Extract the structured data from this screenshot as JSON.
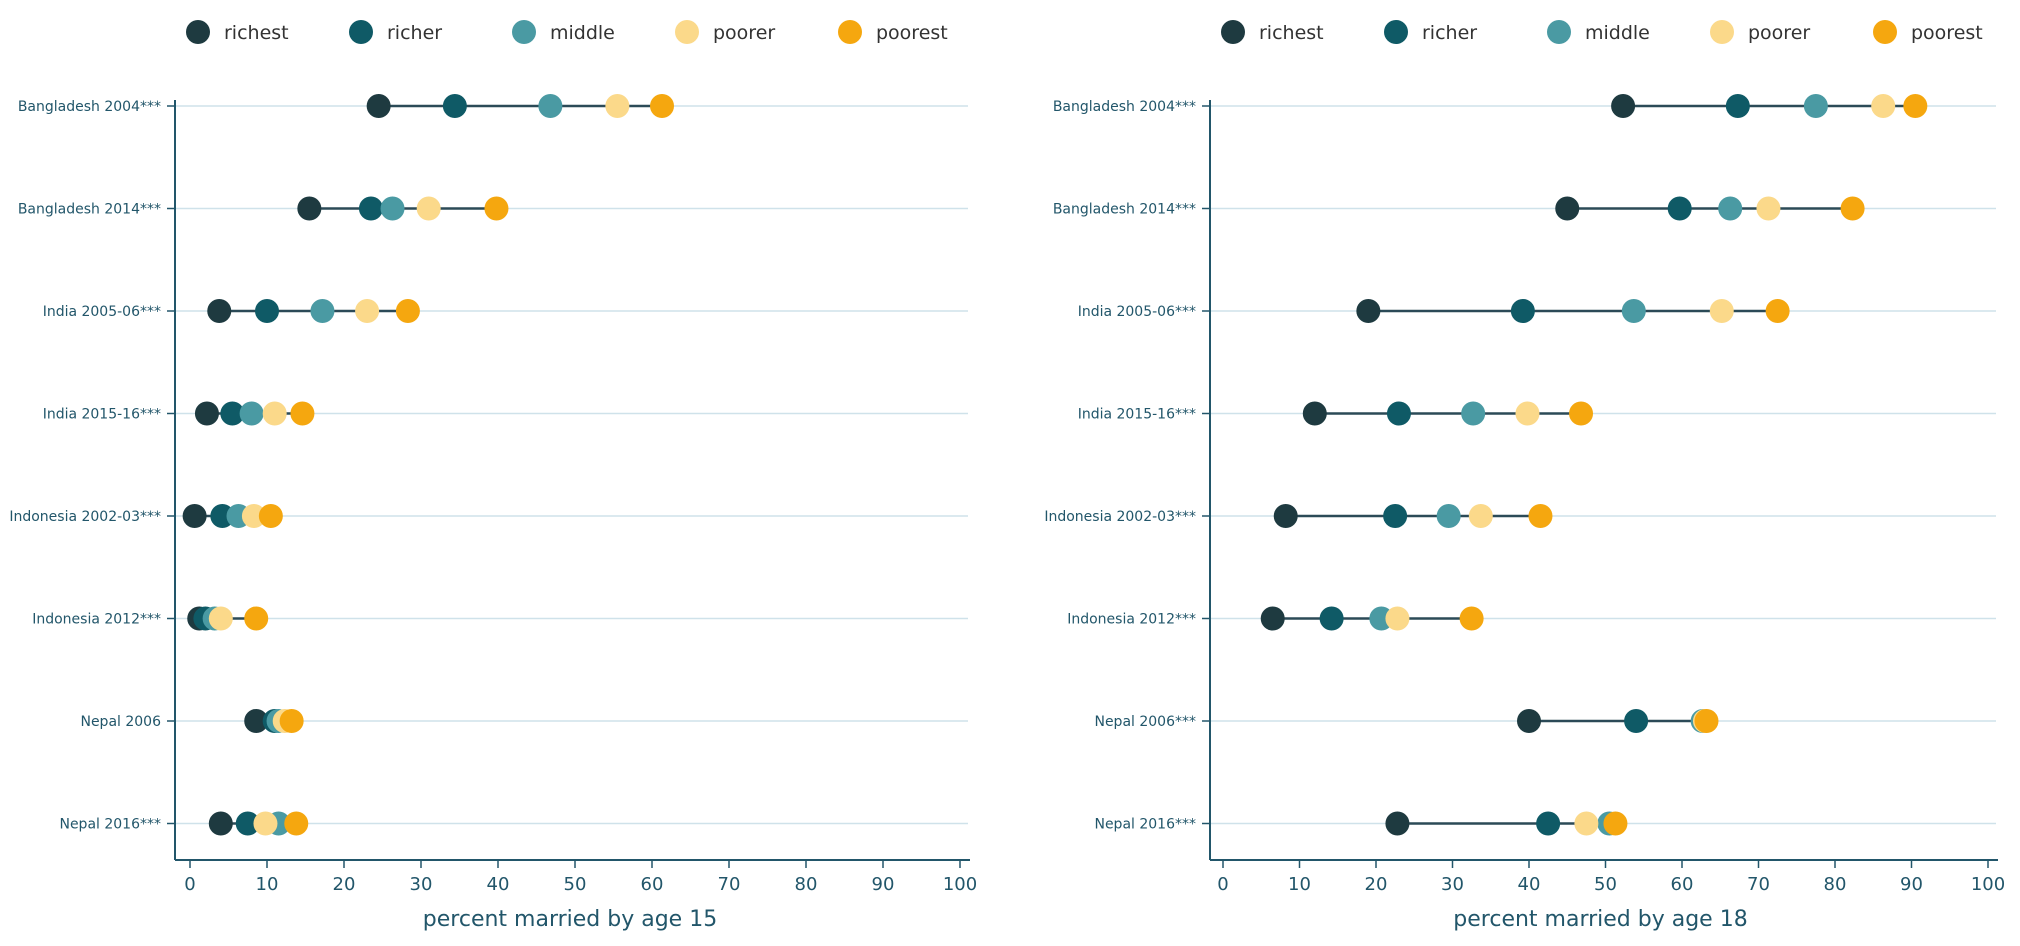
{
  "chart_data": [
    {
      "type": "scatter",
      "xlabel": "percent married by age 15",
      "xlim": [
        0,
        100
      ],
      "xticks": [
        "0",
        "10",
        "20",
        "30",
        "40",
        "50",
        "60",
        "70",
        "80",
        "90",
        "100"
      ],
      "legend_position": "top",
      "grid": "horizontal",
      "categories": [
        "Bangladesh 2004***",
        "Bangladesh 2014***",
        "India 2005-06***",
        "India 2015-16***",
        "Indonesia 2002-03***",
        "Indonesia 2012***",
        "Nepal 2006",
        "Nepal 2016***"
      ],
      "series": [
        {
          "name": "richest",
          "color": "#1e3a40",
          "values": [
            24.5,
            15.5,
            3.8,
            2.2,
            0.6,
            1.2,
            8.6,
            4.0
          ]
        },
        {
          "name": "richer",
          "color": "#0f5a66",
          "values": [
            34.4,
            23.5,
            10.0,
            5.5,
            4.2,
            2.0,
            11.0,
            7.5
          ]
        },
        {
          "name": "middle",
          "color": "#4a9aa3",
          "values": [
            46.8,
            26.3,
            17.2,
            8.0,
            6.3,
            3.2,
            11.5,
            11.5
          ]
        },
        {
          "name": "poorer",
          "color": "#fbd98a",
          "values": [
            55.5,
            31.0,
            23.0,
            11.0,
            8.3,
            4.0,
            12.3,
            9.8
          ]
        },
        {
          "name": "poorest",
          "color": "#f5a70f",
          "values": [
            61.3,
            39.8,
            28.3,
            14.6,
            10.5,
            8.6,
            13.2,
            13.8
          ]
        }
      ]
    },
    {
      "type": "scatter",
      "xlabel": "percent married by age 18",
      "xlim": [
        0,
        100
      ],
      "xticks": [
        "0",
        "10",
        "20",
        "30",
        "40",
        "50",
        "60",
        "70",
        "80",
        "90",
        "100"
      ],
      "legend_position": "top",
      "grid": "horizontal",
      "categories": [
        "Bangladesh 2004***",
        "Bangladesh 2014***",
        "India 2005-06***",
        "India 2015-16***",
        "Indonesia 2002-03***",
        "Indonesia 2012***",
        "Nepal 2006***",
        "Nepal 2016***"
      ],
      "series": [
        {
          "name": "richest",
          "color": "#1e3a40",
          "values": [
            52.3,
            45.0,
            19.0,
            12.0,
            8.2,
            6.5,
            40.0,
            22.8
          ]
        },
        {
          "name": "richer",
          "color": "#0f5a66",
          "values": [
            67.3,
            59.7,
            39.2,
            23.0,
            22.5,
            14.2,
            54.0,
            42.5
          ]
        },
        {
          "name": "middle",
          "color": "#4a9aa3",
          "values": [
            77.5,
            66.3,
            53.7,
            32.7,
            29.5,
            20.7,
            62.7,
            50.5
          ]
        },
        {
          "name": "poorer",
          "color": "#fbd98a",
          "values": [
            86.3,
            71.3,
            65.2,
            39.8,
            33.7,
            22.8,
            63.0,
            47.5
          ]
        },
        {
          "name": "poorest",
          "color": "#f5a70f",
          "values": [
            90.5,
            82.3,
            72.5,
            46.8,
            41.5,
            32.5,
            63.2,
            51.3
          ]
        }
      ]
    }
  ]
}
